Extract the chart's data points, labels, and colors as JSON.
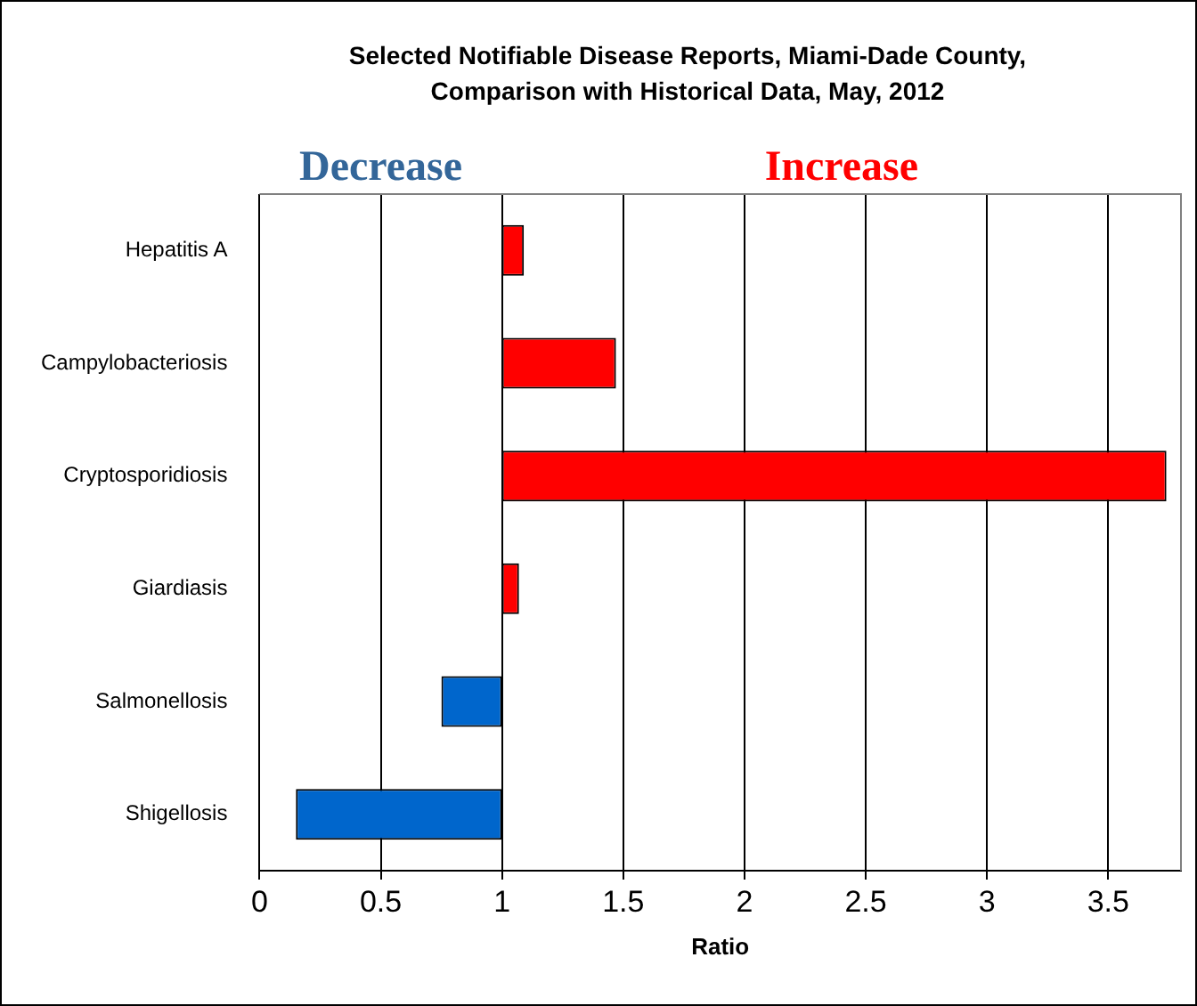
{
  "chart_data": {
    "type": "bar",
    "orientation": "horizontal",
    "title": "Selected Notifiable Disease Reports, Miami-Dade County, Comparison with Historical Data, May, 2012",
    "xlabel": "Ratio",
    "categories": [
      "Hepatitis A",
      "Campylobacteriosis",
      "Cryptosporidiosis",
      "Giardiasis",
      "Salmonellosis",
      "Shigellosis"
    ],
    "base": [
      1,
      1,
      1,
      1,
      1,
      1
    ],
    "values": [
      0.09,
      0.47,
      2.74,
      0.07,
      -0.25,
      -0.85
    ],
    "colors": [
      "#ff0000",
      "#ff0000",
      "#ff0000",
      "#ff0000",
      "#0066cc",
      "#0066cc"
    ],
    "xlim": [
      0,
      3.8
    ],
    "xticks": [
      0,
      0.5,
      1,
      1.5,
      2,
      2.5,
      3,
      3.5
    ],
    "grid": "x",
    "legend": false,
    "annotations": [
      "Decrease",
      "Increase"
    ]
  }
}
